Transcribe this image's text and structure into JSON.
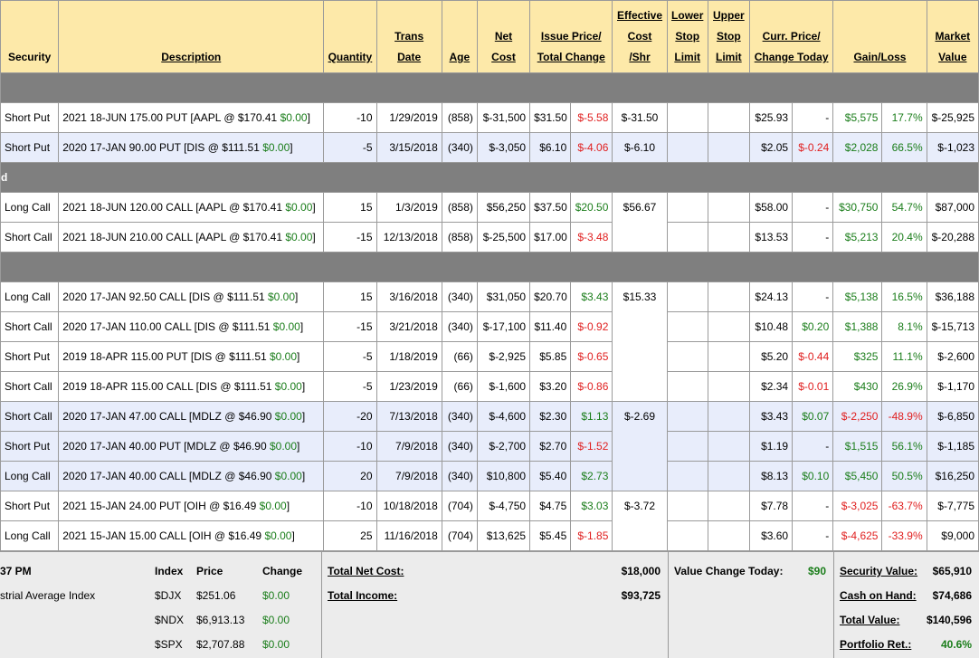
{
  "headers": {
    "security": "Security",
    "description": "Description",
    "quantity": "Quantity",
    "trans_date_1": "Trans",
    "trans_date_2": "Date",
    "age": "Age",
    "net_cost_1": "Net",
    "net_cost_2": "Cost",
    "issue_price_1": "Issue Price/",
    "issue_price_2": "Total Change",
    "eff_cost_1": "Effective",
    "eff_cost_2": "Cost",
    "eff_cost_3": "/Shr",
    "lower_stop_1": "Lower",
    "lower_stop_2": "Stop",
    "lower_stop_3": "Limit",
    "upper_stop_1": "Upper",
    "upper_stop_2": "Stop",
    "upper_stop_3": "Limit",
    "curr_price_1": "Curr. Price/",
    "curr_price_2": "Change Today",
    "gain_loss": "Gain/Loss",
    "market_value_1": "Market",
    "market_value_2": "Value"
  },
  "section_2_label": "d",
  "rows": [
    {
      "security": "Short Put",
      "desc": "2021 18-JUN 175.00 PUT [AAPL @ $170.41 ",
      "desc_chg": "$0.00",
      "qty": "-10",
      "date": "1/29/2019",
      "age": "(858)",
      "net_cost": "$-31,500",
      "issue": "$31.50",
      "total_chg": "$-5.58",
      "eff": "$-31.50",
      "curr": "$25.93",
      "chg_today": "-",
      "gain": "$5,575",
      "gain_pct": "17.7%",
      "mv": "$-25,925"
    },
    {
      "security": "Short Put",
      "desc": "2020 17-JAN 90.00 PUT [DIS @ $111.51 ",
      "desc_chg": "$0.00",
      "qty": "-5",
      "date": "3/15/2018",
      "age": "(340)",
      "net_cost": "$-3,050",
      "issue": "$6.10",
      "total_chg": "$-4.06",
      "eff": "$-6.10",
      "curr": "$2.05",
      "chg_today": "$-0.24",
      "gain": "$2,028",
      "gain_pct": "66.5%",
      "mv": "$-1,023"
    },
    {
      "security": "Long Call",
      "desc": "2021 18-JUN 120.00 CALL [AAPL @ $170.41 ",
      "desc_chg": "$0.00",
      "qty": "15",
      "date": "1/3/2019",
      "age": "(858)",
      "net_cost": "$56,250",
      "issue": "$37.50",
      "total_chg": "$20.50",
      "eff": "$56.67",
      "curr": "$58.00",
      "chg_today": "-",
      "gain": "$30,750",
      "gain_pct": "54.7%",
      "mv": "$87,000"
    },
    {
      "security": "Short Call",
      "desc": "2021 18-JUN 210.00 CALL [AAPL @ $170.41 ",
      "desc_chg": "$0.00",
      "qty": "-15",
      "date": "12/13/2018",
      "age": "(858)",
      "net_cost": "$-25,500",
      "issue": "$17.00",
      "total_chg": "$-3.48",
      "eff": "",
      "curr": "$13.53",
      "chg_today": "-",
      "gain": "$5,213",
      "gain_pct": "20.4%",
      "mv": "$-20,288"
    },
    {
      "security": "Long Call",
      "desc": "2020 17-JAN 92.50 CALL [DIS @ $111.51 ",
      "desc_chg": "$0.00",
      "qty": "15",
      "date": "3/16/2018",
      "age": "(340)",
      "net_cost": "$31,050",
      "issue": "$20.70",
      "total_chg": "$3.43",
      "eff": "$15.33",
      "curr": "$24.13",
      "chg_today": "-",
      "gain": "$5,138",
      "gain_pct": "16.5%",
      "mv": "$36,188"
    },
    {
      "security": "Short Call",
      "desc": "2020 17-JAN 110.00 CALL [DIS @ $111.51 ",
      "desc_chg": "$0.00",
      "qty": "-15",
      "date": "3/21/2018",
      "age": "(340)",
      "net_cost": "$-17,100",
      "issue": "$11.40",
      "total_chg": "$-0.92",
      "eff": "",
      "curr": "$10.48",
      "chg_today": "$0.20",
      "gain": "$1,388",
      "gain_pct": "8.1%",
      "mv": "$-15,713"
    },
    {
      "security": "Short Put",
      "desc": "2019 18-APR 115.00 PUT [DIS @ $111.51 ",
      "desc_chg": "$0.00",
      "qty": "-5",
      "date": "1/18/2019",
      "age": "(66)",
      "net_cost": "$-2,925",
      "issue": "$5.85",
      "total_chg": "$-0.65",
      "eff": "",
      "curr": "$5.20",
      "chg_today": "$-0.44",
      "gain": "$325",
      "gain_pct": "11.1%",
      "mv": "$-2,600"
    },
    {
      "security": "Short Call",
      "desc": "2019 18-APR 115.00 CALL [DIS @ $111.51 ",
      "desc_chg": "$0.00",
      "qty": "-5",
      "date": "1/23/2019",
      "age": "(66)",
      "net_cost": "$-1,600",
      "issue": "$3.20",
      "total_chg": "$-0.86",
      "eff": "",
      "curr": "$2.34",
      "chg_today": "$-0.01",
      "gain": "$430",
      "gain_pct": "26.9%",
      "mv": "$-1,170"
    },
    {
      "security": "Short Call",
      "desc": "2020 17-JAN 47.00 CALL [MDLZ @ $46.90 ",
      "desc_chg": "$0.00",
      "qty": "-20",
      "date": "7/13/2018",
      "age": "(340)",
      "net_cost": "$-4,600",
      "issue": "$2.30",
      "total_chg": "$1.13",
      "eff": "$-2.69",
      "curr": "$3.43",
      "chg_today": "$0.07",
      "gain": "$-2,250",
      "gain_pct": "-48.9%",
      "mv": "$-6,850"
    },
    {
      "security": "Short Put",
      "desc": "2020 17-JAN 40.00 PUT [MDLZ @ $46.90 ",
      "desc_chg": "$0.00",
      "qty": "-10",
      "date": "7/9/2018",
      "age": "(340)",
      "net_cost": "$-2,700",
      "issue": "$2.70",
      "total_chg": "$-1.52",
      "eff": "",
      "curr": "$1.19",
      "chg_today": "-",
      "gain": "$1,515",
      "gain_pct": "56.1%",
      "mv": "$-1,185"
    },
    {
      "security": "Long Call",
      "desc": "2020 17-JAN 40.00 CALL [MDLZ @ $46.90 ",
      "desc_chg": "$0.00",
      "qty": "20",
      "date": "7/9/2018",
      "age": "(340)",
      "net_cost": "$10,800",
      "issue": "$5.40",
      "total_chg": "$2.73",
      "eff": "",
      "curr": "$8.13",
      "chg_today": "$0.10",
      "gain": "$5,450",
      "gain_pct": "50.5%",
      "mv": "$16,250"
    },
    {
      "security": "Short Put",
      "desc": "2021 15-JAN 24.00 PUT [OIH @ $16.49 ",
      "desc_chg": "$0.00",
      "qty": "-10",
      "date": "10/18/2018",
      "age": "(704)",
      "net_cost": "$-4,750",
      "issue": "$4.75",
      "total_chg": "$3.03",
      "eff": "$-3.72",
      "curr": "$7.78",
      "chg_today": "-",
      "gain": "$-3,025",
      "gain_pct": "-63.7%",
      "mv": "$-7,775"
    },
    {
      "security": "Long Call",
      "desc": "2021 15-JAN 15.00 CALL [OIH @ $16.49 ",
      "desc_chg": "$0.00",
      "qty": "25",
      "date": "11/16/2018",
      "age": "(704)",
      "net_cost": "$13,625",
      "issue": "$5.45",
      "total_chg": "$-1.85",
      "eff": "",
      "curr": "$3.60",
      "chg_today": "-",
      "gain": "$-4,625",
      "gain_pct": "-33.9%",
      "mv": "$9,000"
    }
  ],
  "footer": {
    "time": "37 PM",
    "index_hdr": "Index",
    "price_hdr": "Price",
    "change_hdr": "Change",
    "index_name": "strial Average Index",
    "indices": [
      {
        "sym": "$DJX",
        "price": "$251.06",
        "chg": "$0.00"
      },
      {
        "sym": "$NDX",
        "price": "$6,913.13",
        "chg": "$0.00"
      },
      {
        "sym": "$SPX",
        "price": "$2,707.88",
        "chg": "$0.00"
      }
    ],
    "total_net_cost_label": "Total Net Cost:",
    "total_net_cost": "$18,000",
    "total_income_label": "Total Income:",
    "total_income": "$93,725",
    "value_change_label": "Value Change Today:",
    "value_change": "$90",
    "security_value_label": "Security Value:",
    "security_value": "$65,910",
    "cash_label": "Cash on Hand:",
    "cash": "$74,686",
    "total_value_label": "Total Value:",
    "total_value": "$140,596",
    "portfolio_ret_label": "Portfolio Ret.:",
    "portfolio_ret": "40.6%"
  }
}
